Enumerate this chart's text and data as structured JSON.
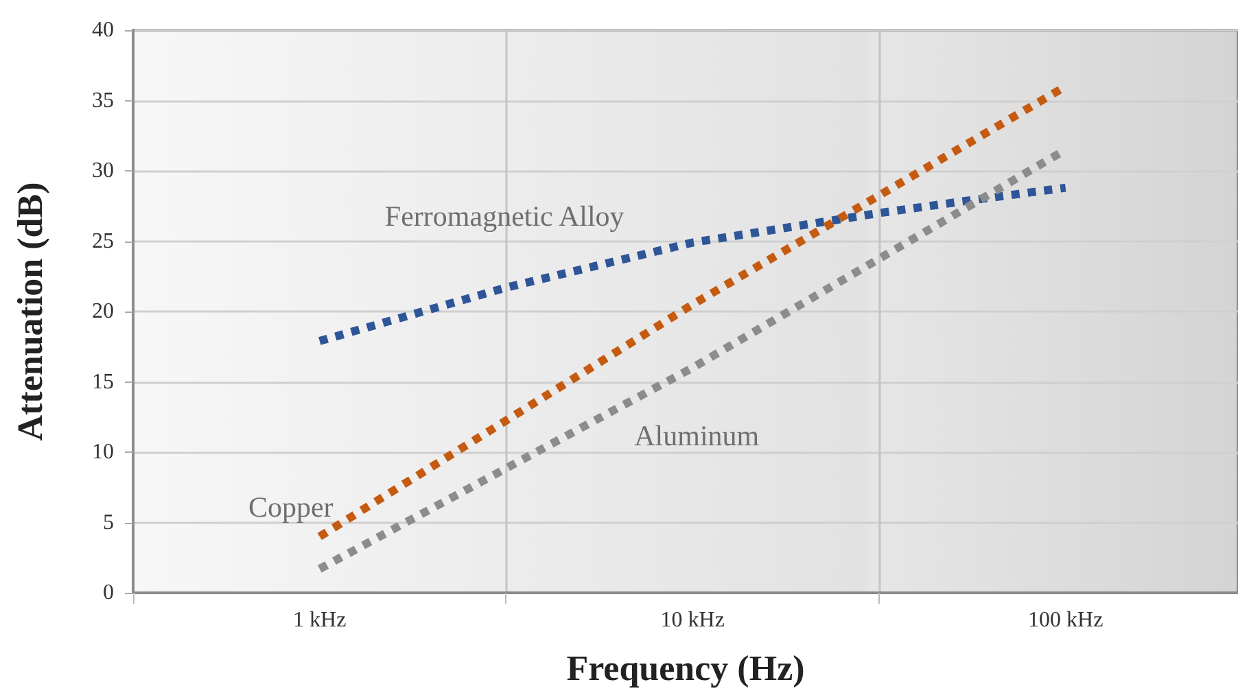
{
  "chart_data": {
    "type": "line",
    "xlabel": "Frequency (Hz)",
    "ylabel": "Attenuation (dB)",
    "log": "x",
    "xlim": [
      0.3162,
      290
    ],
    "xticks": [
      {
        "value": 0.3162,
        "label": null
      },
      {
        "value": 1,
        "label": "1 kHz"
      },
      {
        "value": 3.162,
        "label": null
      },
      {
        "value": 10,
        "label": "10 kHz"
      },
      {
        "value": 31.62,
        "label": null
      },
      {
        "value": 100,
        "label": "100 kHz"
      }
    ],
    "ylim": [
      0,
      40
    ],
    "yticks": [
      0,
      5,
      10,
      15,
      20,
      25,
      30,
      35,
      40
    ],
    "grid": true,
    "legend": false,
    "line_style": "dotted",
    "marker": "none",
    "series": [
      {
        "name": "Ferromagnetic Alloy",
        "color": "#2e5597",
        "x": [
          1,
          3.162,
          10,
          31.62,
          52,
          100
        ],
        "values": [
          17.9,
          21.7,
          24.9,
          27.0,
          27.8,
          28.8
        ]
      },
      {
        "name": "Copper",
        "color": "#c55a11",
        "x": [
          1,
          10,
          100
        ],
        "values": [
          4.0,
          20.5,
          36.0
        ]
      },
      {
        "name": "Aluminum",
        "color": "#8c8c8c",
        "x": [
          1,
          10,
          100
        ],
        "values": [
          1.7,
          16.0,
          31.5
        ]
      }
    ]
  }
}
